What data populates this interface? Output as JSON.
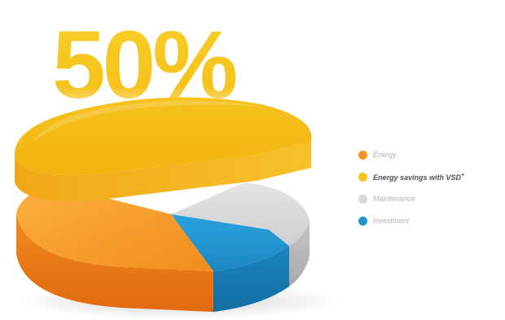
{
  "colors": {
    "orange": "#f39222",
    "yellow": "#f7c21a",
    "grey": "#d8d8d8",
    "blue": "#1f93cf"
  },
  "chart_data": {
    "type": "pie",
    "title": "50%",
    "title_color": "#f7c21a",
    "labels": [
      "Energy",
      "Energy savings with VSD+",
      "Maintenance",
      "Investment"
    ],
    "values": [
      32,
      50,
      10,
      8
    ],
    "unit": "%",
    "exploded": "Energy savings with VSD+",
    "style": "3d",
    "legend_position": "right"
  },
  "legend": {
    "items": [
      {
        "label": "Energy",
        "color": "#f39222",
        "emphasis": false
      },
      {
        "label": "Energy savings with VSD",
        "suffix": "+",
        "color": "#f7c21a",
        "emphasis": true
      },
      {
        "label": "Maintenance",
        "color": "#d8d8d8",
        "emphasis": false
      },
      {
        "label": "Investment",
        "color": "#1f93cf",
        "emphasis": false
      }
    ]
  }
}
